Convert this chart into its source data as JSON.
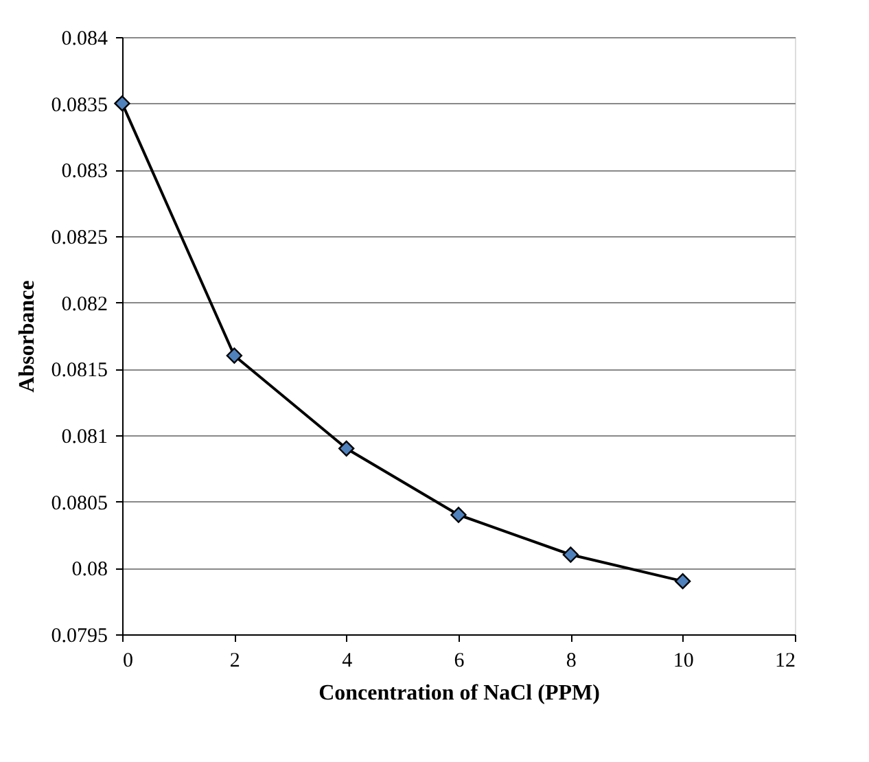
{
  "chart_data": {
    "type": "line",
    "xlabel": "Concentration of NaCl (PPM)",
    "ylabel": "Absorbance",
    "x": [
      0,
      2,
      4,
      6,
      8,
      10
    ],
    "series": [
      {
        "color": "#4f81bd",
        "values": [
          0.0835,
          0.0816,
          0.0809,
          0.0804,
          0.0801,
          0.0799
        ]
      }
    ],
    "xlim": [
      0,
      12
    ],
    "xticks": [
      0,
      2,
      4,
      6,
      8,
      10,
      12
    ],
    "ylim": [
      0.0795,
      0.084
    ],
    "yticks": [
      0.0795,
      0.08,
      0.0805,
      0.081,
      0.0815,
      0.082,
      0.0825,
      0.083,
      0.0835,
      0.084
    ],
    "grid": "y",
    "marker": "diamond",
    "line_style": "solid",
    "legend": false
  }
}
